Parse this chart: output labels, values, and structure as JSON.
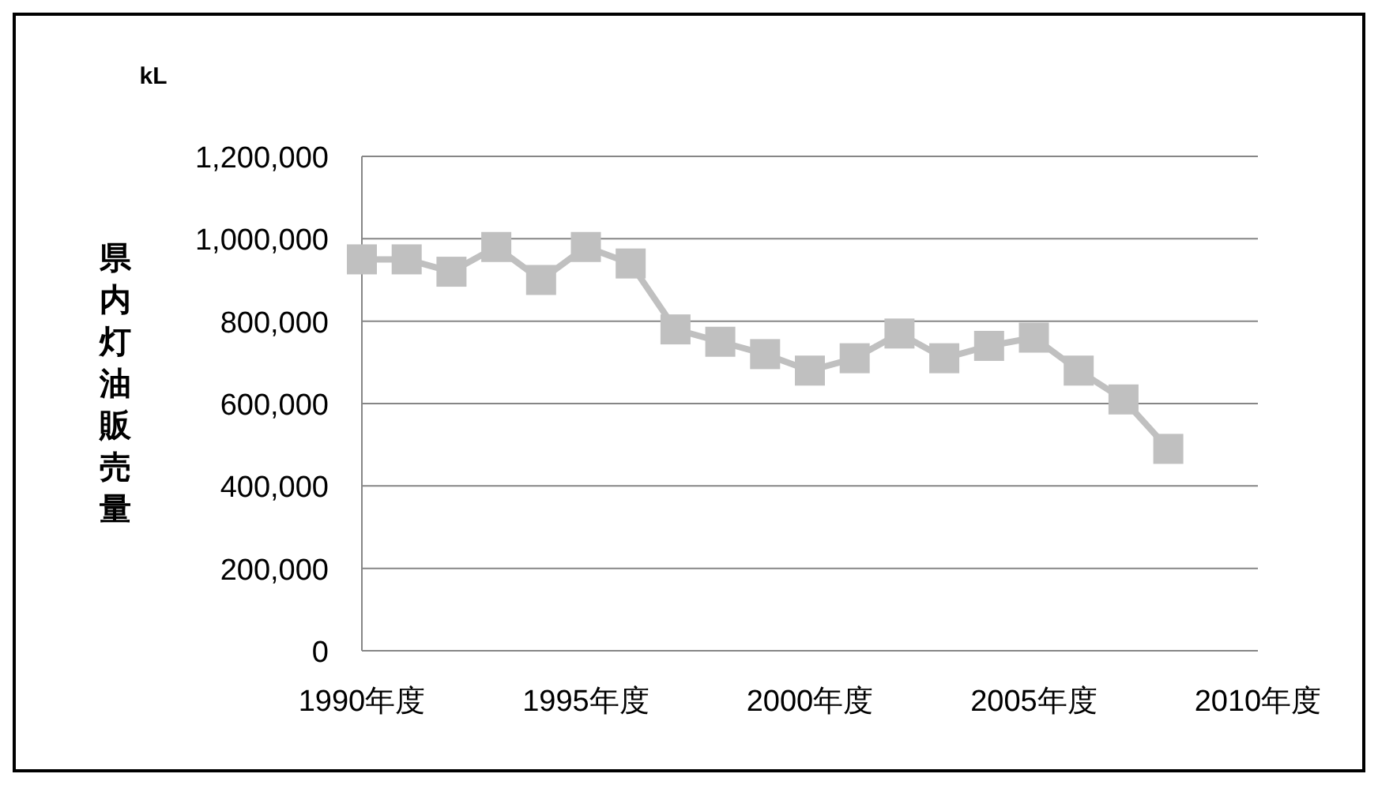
{
  "chart_data": {
    "type": "line",
    "ylabel": "県内灯油販売量",
    "annotations": [
      "kL"
    ],
    "x": [
      1990,
      1991,
      1992,
      1993,
      1994,
      1995,
      1996,
      1997,
      1998,
      1999,
      2000,
      2001,
      2002,
      2003,
      2004,
      2005,
      2006,
      2007,
      2008
    ],
    "series": [
      {
        "color": "#c0c0c0",
        "values": [
          950000,
          950000,
          920000,
          980000,
          900000,
          980000,
          940000,
          780000,
          750000,
          720000,
          680000,
          710000,
          770000,
          710000,
          740000,
          760000,
          680000,
          610000,
          490000
        ]
      }
    ],
    "xlim": [
      1990,
      2010
    ],
    "xticks": [
      {
        "value": 1990,
        "label": "1990年度"
      },
      {
        "value": 1995,
        "label": "1995年度"
      },
      {
        "value": 2000,
        "label": "2000年度"
      },
      {
        "value": 2005,
        "label": "2005年度"
      },
      {
        "value": 2010,
        "label": "2010年度"
      }
    ],
    "ylim": [
      0,
      1200000
    ],
    "yticks": [
      {
        "value": 0,
        "label": "0"
      },
      {
        "value": 200000,
        "label": "200,000"
      },
      {
        "value": 400000,
        "label": "400,000"
      },
      {
        "value": 600000,
        "label": "600,000"
      },
      {
        "value": 800000,
        "label": "800,000"
      },
      {
        "value": 1000000,
        "label": "1,000,000"
      },
      {
        "value": 1200000,
        "label": "1,200,000"
      }
    ],
    "grid": "y",
    "marker": "square",
    "line_style": "solid"
  }
}
